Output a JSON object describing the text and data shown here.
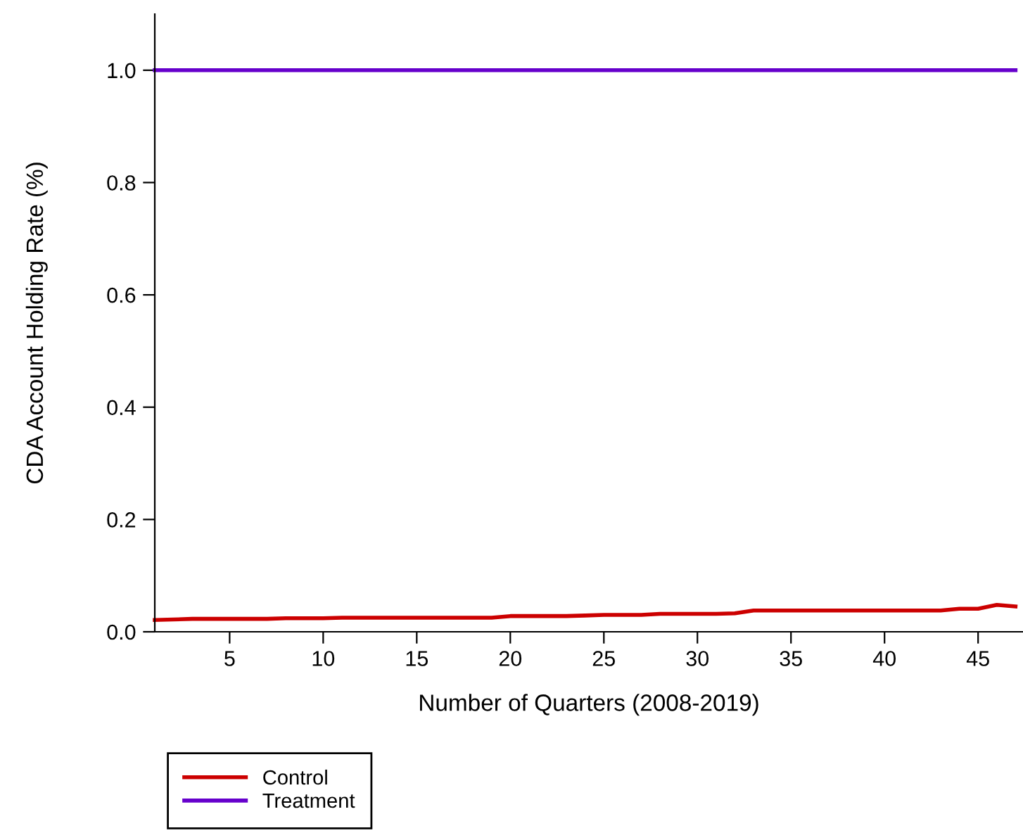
{
  "chart_data": {
    "type": "line",
    "xlabel": "Number of Quarters (2008-2019)",
    "ylabel": "CDA Account Holding Rate (%)",
    "x": [
      1,
      2,
      3,
      4,
      5,
      6,
      7,
      8,
      9,
      10,
      11,
      12,
      13,
      14,
      15,
      16,
      17,
      18,
      19,
      20,
      21,
      22,
      23,
      24,
      25,
      26,
      27,
      28,
      29,
      30,
      31,
      32,
      33,
      34,
      35,
      36,
      37,
      38,
      39,
      40,
      41,
      42,
      43,
      44,
      45,
      46,
      47
    ],
    "series": [
      {
        "name": "Control",
        "color": "#cc0000",
        "values": [
          0.021,
          0.022,
          0.023,
          0.023,
          0.023,
          0.023,
          0.023,
          0.024,
          0.024,
          0.024,
          0.025,
          0.025,
          0.025,
          0.025,
          0.025,
          0.025,
          0.025,
          0.025,
          0.025,
          0.028,
          0.028,
          0.028,
          0.028,
          0.029,
          0.03,
          0.03,
          0.03,
          0.032,
          0.032,
          0.032,
          0.032,
          0.033,
          0.038,
          0.038,
          0.038,
          0.038,
          0.038,
          0.038,
          0.038,
          0.038,
          0.038,
          0.038,
          0.038,
          0.041,
          0.041,
          0.048,
          0.045
        ]
      },
      {
        "name": "Treatment",
        "color": "#6600cc",
        "values": [
          1.0,
          1.0,
          1.0,
          1.0,
          1.0,
          1.0,
          1.0,
          1.0,
          1.0,
          1.0,
          1.0,
          1.0,
          1.0,
          1.0,
          1.0,
          1.0,
          1.0,
          1.0,
          1.0,
          1.0,
          1.0,
          1.0,
          1.0,
          1.0,
          1.0,
          1.0,
          1.0,
          1.0,
          1.0,
          1.0,
          1.0,
          1.0,
          1.0,
          1.0,
          1.0,
          1.0,
          1.0,
          1.0,
          1.0,
          1.0,
          1.0,
          1.0,
          1.0,
          1.0,
          1.0,
          1.0,
          1.0
        ]
      }
    ],
    "xlim": [
      1,
      47.4
    ],
    "ylim": [
      0,
      1.1
    ],
    "xticks": [
      5,
      10,
      15,
      20,
      25,
      30,
      35,
      40,
      45
    ],
    "yticks": [
      {
        "value": 0,
        "label": "0.0"
      },
      {
        "value": 0.2,
        "label": "0.2"
      },
      {
        "value": 0.4,
        "label": "0.4"
      },
      {
        "value": 0.6,
        "label": "0.6"
      },
      {
        "value": 0.8,
        "label": "0.8"
      },
      {
        "value": 1.0,
        "label": "1.0"
      }
    ],
    "legend": "bottom left",
    "line_style": "solid"
  }
}
